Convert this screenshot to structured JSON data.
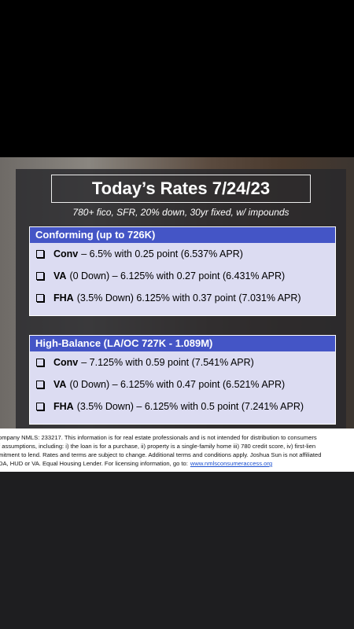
{
  "title": "Today’s Rates 7/24/23",
  "subtitle": "780+ fico, SFR, 20% down, 30yr fixed, w/ impounds",
  "sections": [
    {
      "heading": "Conforming (up to 726K)",
      "items": [
        {
          "loan": "Conv",
          "detail": "– 6.5% with 0.25 point (6.537% APR)"
        },
        {
          "loan": "VA",
          "detail": "(0 Down) – 6.125% with 0.27 point (6.431% APR)"
        },
        {
          "loan": "FHA",
          "detail": "(3.5% Down) 6.125% with 0.37 point (7.031% APR)"
        }
      ]
    },
    {
      "heading": "High-Balance (LA/OC 727K - 1.089M)",
      "items": [
        {
          "loan": "Conv",
          "detail": "– 7.125% with 0.59 point (7.541% APR)"
        },
        {
          "loan": "VA",
          "detail": "(0 Down) – 6.125% with 0.47 point (6.521% APR)"
        },
        {
          "loan": "FHA",
          "detail": "(3.5% Down) – 6.125% with 0.5 point (7.241% APR)"
        }
      ]
    }
  ],
  "disclaimer": {
    "lines": [
      "ompany NMLS: 233217. This information is for real estate professionals and is not intended for distribution to consumers",
      "f assumptions, including: i) the loan is for a purchase, ii) property is a single-family home iii) 780 credit score, iv) first-lien",
      "mitment to lend. Rates and terms are subject to change. Additional terms and conditions apply. Joshua Sun is not affiliated",
      "DA, HUD or VA. Equal Housing Lender. For licensing information, go to:"
    ],
    "link": "www.nmlsconsumeraccess.org"
  }
}
